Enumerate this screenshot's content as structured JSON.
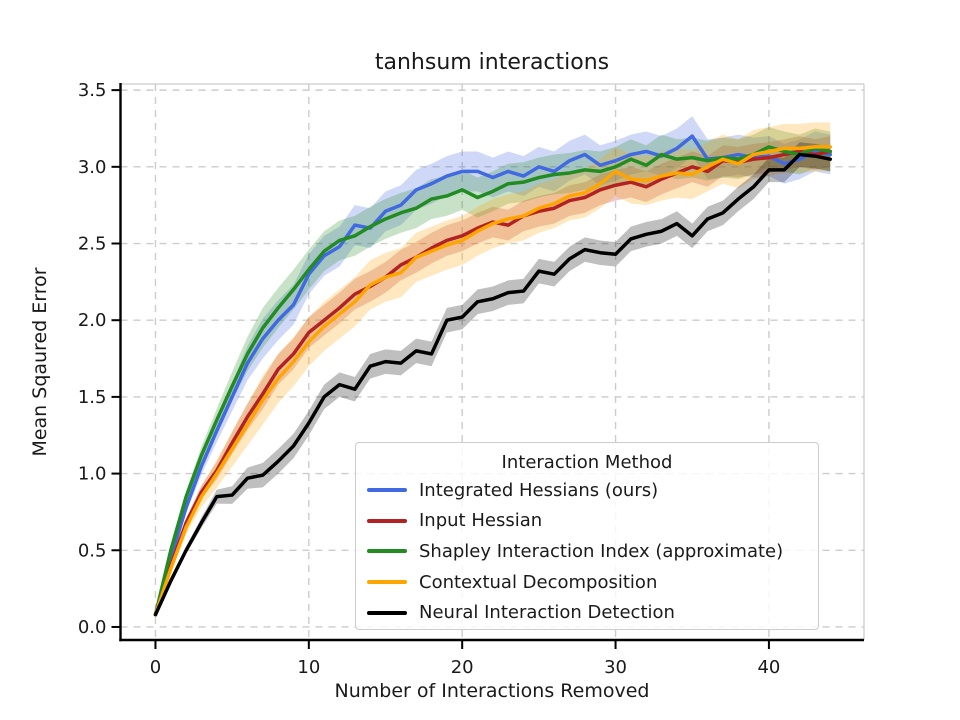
{
  "chart_data": {
    "type": "line",
    "title": "tanhsum interactions",
    "xlabel": "Number of Interactions Removed",
    "ylabel": "Mean Sqaured Error",
    "legend_title": "Interaction Method",
    "legend_position": "lower right inside axes",
    "grid": true,
    "grid_style": "dashed",
    "xlim": [
      -2.28,
      46.2
    ],
    "ylim": [
      -0.085,
      3.54
    ],
    "xticks": [
      0,
      10,
      20,
      30,
      40
    ],
    "xtick_labels": [
      "0",
      "10",
      "20",
      "30",
      "40"
    ],
    "yticks": [
      0.0,
      0.5,
      1.0,
      1.5,
      2.0,
      2.5,
      3.0,
      3.5
    ],
    "ytick_labels": [
      "0.0",
      "0.5",
      "1.0",
      "1.5",
      "2.0",
      "2.5",
      "3.0",
      "3.5"
    ],
    "band_alpha": 0.25,
    "x": [
      0,
      1,
      2,
      3,
      4,
      5,
      6,
      7,
      8,
      9,
      10,
      11,
      12,
      13,
      14,
      15,
      16,
      17,
      18,
      19,
      20,
      21,
      22,
      23,
      24,
      25,
      26,
      27,
      28,
      29,
      30,
      31,
      32,
      33,
      34,
      35,
      36,
      37,
      38,
      39,
      40,
      41,
      42,
      43,
      44
    ],
    "series": [
      {
        "name": "Integrated Hessians (ours)",
        "color": "#4169e1",
        "band": 0.13,
        "values": [
          0.08,
          0.45,
          0.78,
          1.05,
          1.28,
          1.5,
          1.72,
          1.88,
          2.0,
          2.1,
          2.3,
          2.42,
          2.48,
          2.62,
          2.6,
          2.71,
          2.75,
          2.85,
          2.89,
          2.94,
          2.97,
          2.97,
          2.93,
          2.97,
          2.94,
          3.0,
          2.97,
          3.04,
          3.08,
          3.01,
          3.04,
          3.08,
          3.1,
          3.07,
          3.12,
          3.2,
          3.05,
          3.06,
          3.08,
          3.06,
          3.07,
          3.02,
          3.05,
          3.1,
          3.08
        ]
      },
      {
        "name": "Input Hessian",
        "color": "#b22222",
        "band": 0.1,
        "values": [
          0.08,
          0.4,
          0.68,
          0.88,
          1.02,
          1.2,
          1.37,
          1.52,
          1.68,
          1.78,
          1.92,
          2.0,
          2.08,
          2.17,
          2.22,
          2.28,
          2.36,
          2.41,
          2.47,
          2.52,
          2.55,
          2.6,
          2.64,
          2.62,
          2.68,
          2.71,
          2.73,
          2.78,
          2.8,
          2.85,
          2.88,
          2.9,
          2.87,
          2.92,
          2.96,
          3.0,
          2.97,
          3.04,
          3.03,
          3.05,
          3.06,
          3.08,
          3.1,
          3.08,
          3.1
        ]
      },
      {
        "name": "Shapley Interaction Index (approximate)",
        "color": "#228b22",
        "band": 0.13,
        "values": [
          0.08,
          0.5,
          0.85,
          1.12,
          1.35,
          1.57,
          1.78,
          1.95,
          2.08,
          2.2,
          2.33,
          2.45,
          2.52,
          2.55,
          2.61,
          2.66,
          2.7,
          2.73,
          2.79,
          2.81,
          2.85,
          2.8,
          2.84,
          2.89,
          2.9,
          2.93,
          2.95,
          2.96,
          2.98,
          2.97,
          3.0,
          3.05,
          3.01,
          3.08,
          3.05,
          3.06,
          3.04,
          3.06,
          3.05,
          3.08,
          3.13,
          3.1,
          3.08,
          3.12,
          3.1
        ]
      },
      {
        "name": "Contextual Decomposition",
        "color": "#ffa500",
        "band": 0.16,
        "values": [
          0.08,
          0.38,
          0.65,
          0.85,
          1.0,
          1.16,
          1.32,
          1.48,
          1.62,
          1.73,
          1.86,
          1.96,
          2.04,
          2.12,
          2.23,
          2.28,
          2.31,
          2.41,
          2.45,
          2.49,
          2.52,
          2.58,
          2.63,
          2.66,
          2.68,
          2.73,
          2.76,
          2.81,
          2.83,
          2.89,
          2.97,
          2.92,
          2.91,
          2.94,
          2.96,
          2.95,
          3.0,
          3.05,
          3.02,
          3.08,
          3.1,
          3.12,
          3.12,
          3.13,
          3.13
        ]
      },
      {
        "name": "Neural Interaction Detection",
        "color": "#000000",
        "band": 0.08,
        "values": [
          0.08,
          0.3,
          0.5,
          0.68,
          0.85,
          0.86,
          0.97,
          0.99,
          1.08,
          1.18,
          1.33,
          1.5,
          1.58,
          1.55,
          1.7,
          1.73,
          1.72,
          1.8,
          1.78,
          2.0,
          2.02,
          2.12,
          2.14,
          2.18,
          2.19,
          2.32,
          2.3,
          2.4,
          2.46,
          2.44,
          2.43,
          2.53,
          2.56,
          2.58,
          2.63,
          2.55,
          2.66,
          2.7,
          2.79,
          2.87,
          2.98,
          2.98,
          3.08,
          3.07,
          3.05
        ]
      }
    ]
  },
  "style": {
    "grid_color": "#cccccc",
    "spine_dark": "#000000",
    "spine_light": "#cccccc",
    "background": "#ffffff"
  }
}
